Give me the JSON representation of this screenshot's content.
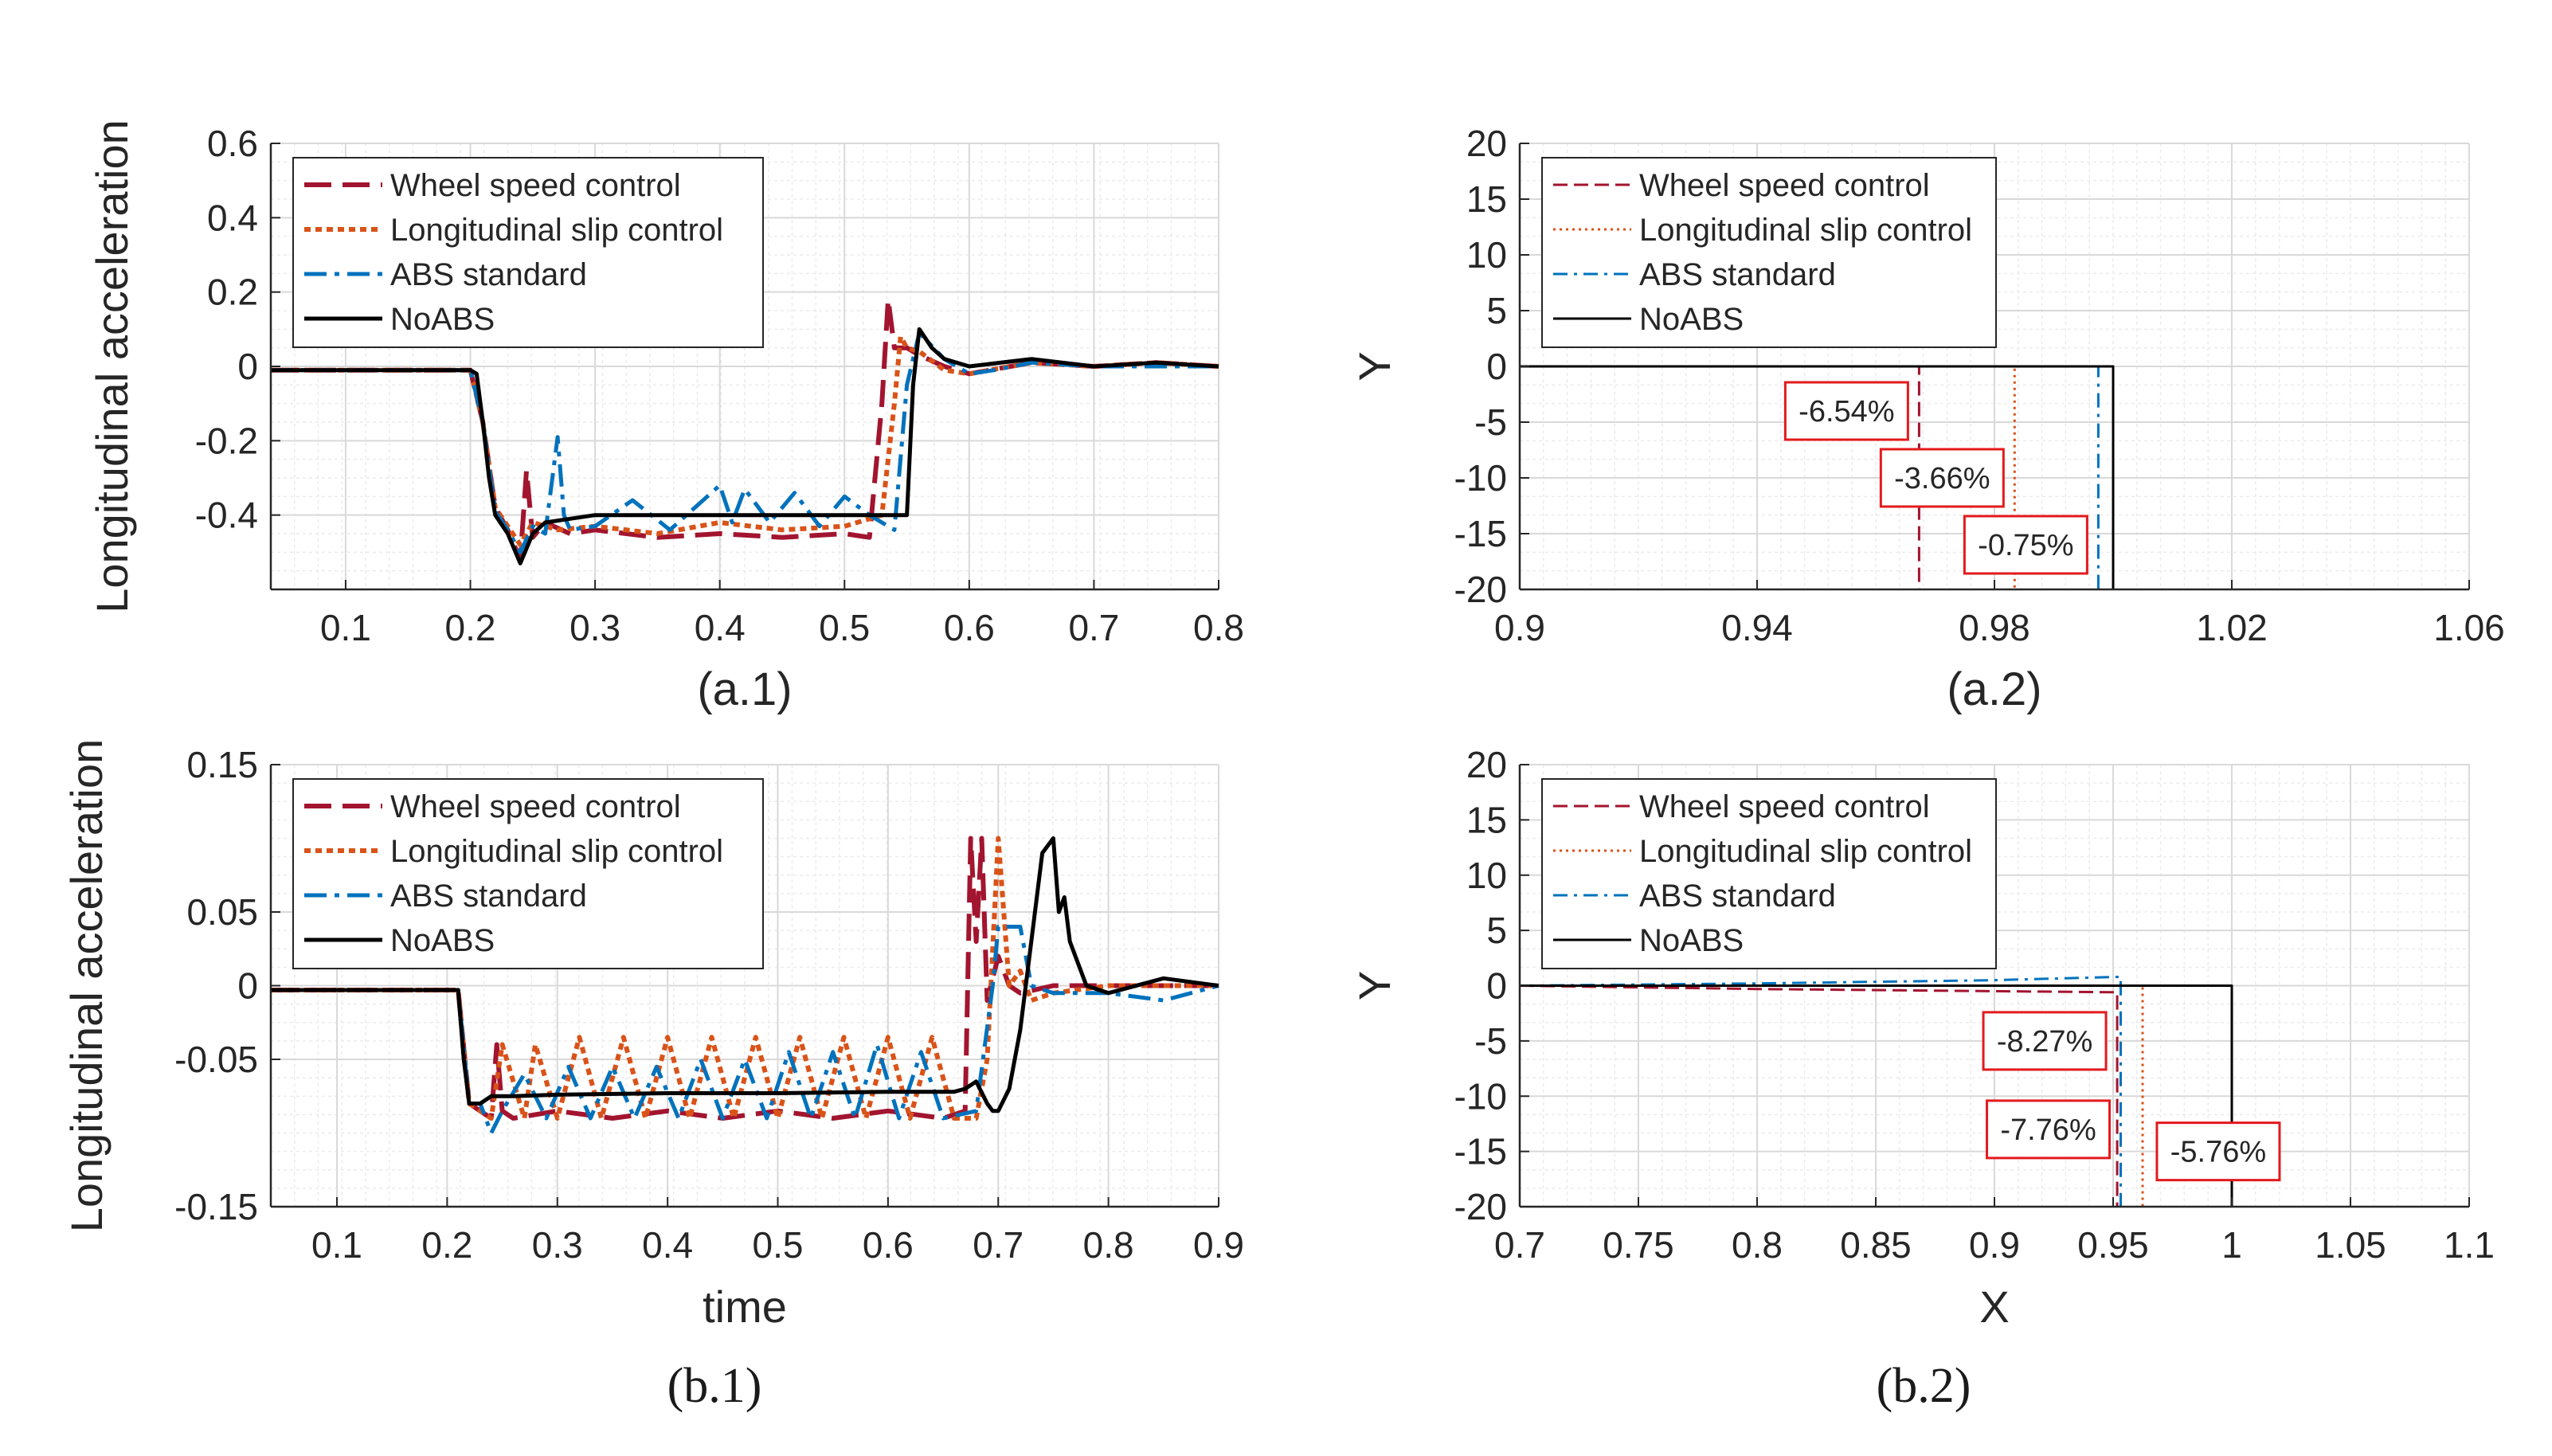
{
  "colors": {
    "wheel": "#a2142f",
    "slip": "#d95319",
    "abs": "#0072bd",
    "noabs": "#000000",
    "ann_border": "#e31a1c"
  },
  "chart_data": [
    {
      "id": "a1",
      "type": "line",
      "caption": "(a.1)",
      "xlabel": "",
      "ylabel": "Longitudinal acceleration",
      "xlim": [
        0.04,
        0.8
      ],
      "ylim": [
        -0.6,
        0.6
      ],
      "xticks": [
        0.1,
        0.2,
        0.3,
        0.4,
        0.5,
        0.6,
        0.7,
        0.8
      ],
      "yticks": [
        0.6,
        0.4,
        0.2,
        0,
        -0.2,
        -0.4
      ],
      "xtick_labels": [
        "0.1",
        "0.2",
        "0.3",
        "0.4",
        "0.5",
        "0.6",
        "0.7",
        "0.8"
      ],
      "ytick_labels": [
        "0.6",
        "0.4",
        "0.2",
        "0",
        "-0.2",
        "-0.4"
      ],
      "grid": true,
      "legend": "top-left",
      "series": [
        {
          "name": "Wheel speed control",
          "style": "wheel",
          "x": [
            0.04,
            0.2,
            0.21,
            0.22,
            0.23,
            0.24,
            0.245,
            0.25,
            0.26,
            0.28,
            0.3,
            0.35,
            0.4,
            0.45,
            0.5,
            0.52,
            0.53,
            0.535,
            0.54,
            0.55,
            0.56,
            0.58,
            0.6,
            0.65,
            0.7,
            0.75,
            0.8
          ],
          "y": [
            -0.01,
            -0.01,
            -0.15,
            -0.38,
            -0.44,
            -0.52,
            -0.28,
            -0.46,
            -0.42,
            -0.45,
            -0.44,
            -0.46,
            -0.45,
            -0.46,
            -0.45,
            -0.46,
            -0.1,
            0.18,
            0.05,
            0.05,
            0.03,
            0.0,
            -0.02,
            0.01,
            0.0,
            0.01,
            0.0
          ]
        },
        {
          "name": "Longitudinal slip control",
          "style": "slip",
          "x": [
            0.04,
            0.2,
            0.21,
            0.22,
            0.23,
            0.24,
            0.25,
            0.27,
            0.3,
            0.35,
            0.4,
            0.45,
            0.5,
            0.53,
            0.54,
            0.545,
            0.55,
            0.56,
            0.58,
            0.6,
            0.65,
            0.7,
            0.75,
            0.8
          ],
          "y": [
            -0.01,
            -0.01,
            -0.15,
            -0.38,
            -0.43,
            -0.48,
            -0.42,
            -0.44,
            -0.43,
            -0.45,
            -0.42,
            -0.44,
            -0.43,
            -0.4,
            -0.1,
            0.08,
            0.05,
            0.04,
            -0.01,
            -0.02,
            0.01,
            0.0,
            0.01,
            0.0
          ]
        },
        {
          "name": "ABS standard",
          "style": "abs",
          "x": [
            0.04,
            0.2,
            0.21,
            0.22,
            0.23,
            0.24,
            0.25,
            0.26,
            0.27,
            0.275,
            0.28,
            0.3,
            0.33,
            0.36,
            0.4,
            0.41,
            0.42,
            0.44,
            0.46,
            0.48,
            0.5,
            0.52,
            0.54,
            0.55,
            0.56,
            0.58,
            0.6,
            0.62,
            0.65,
            0.7,
            0.75,
            0.8
          ],
          "y": [
            -0.01,
            -0.01,
            -0.15,
            -0.39,
            -0.44,
            -0.5,
            -0.43,
            -0.45,
            -0.19,
            -0.4,
            -0.44,
            -0.43,
            -0.36,
            -0.44,
            -0.32,
            -0.42,
            -0.33,
            -0.42,
            -0.34,
            -0.43,
            -0.35,
            -0.4,
            -0.44,
            -0.05,
            0.09,
            0.02,
            -0.02,
            -0.01,
            0.01,
            0.0,
            0.0,
            0.0
          ]
        },
        {
          "name": "NoABS",
          "style": "noabs",
          "x": [
            0.04,
            0.2,
            0.205,
            0.21,
            0.215,
            0.22,
            0.23,
            0.24,
            0.25,
            0.26,
            0.28,
            0.3,
            0.4,
            0.5,
            0.545,
            0.55,
            0.555,
            0.56,
            0.57,
            0.58,
            0.6,
            0.65,
            0.7,
            0.75,
            0.8
          ],
          "y": [
            -0.01,
            -0.01,
            -0.02,
            -0.15,
            -0.3,
            -0.4,
            -0.45,
            -0.53,
            -0.45,
            -0.42,
            -0.41,
            -0.4,
            -0.4,
            -0.4,
            -0.4,
            -0.4,
            -0.05,
            0.1,
            0.05,
            0.02,
            0.0,
            0.02,
            0.0,
            0.01,
            0.0
          ]
        }
      ]
    },
    {
      "id": "a2",
      "type": "line",
      "caption": "(a.2)",
      "xlabel": "",
      "ylabel": "Y",
      "xlim": [
        0.9,
        1.06
      ],
      "ylim": [
        -20,
        20
      ],
      "xticks": [
        0.9,
        0.94,
        0.98,
        1.02,
        1.06
      ],
      "yticks": [
        20,
        15,
        10,
        5,
        0,
        -5,
        -10,
        -15,
        -20
      ],
      "xtick_labels": [
        "0.9",
        "0.94",
        "0.98",
        "1.02",
        "1.06"
      ],
      "ytick_labels": [
        "20",
        "15",
        "10",
        "5",
        "0",
        "-5",
        "-10",
        "-15",
        "-20"
      ],
      "grid": true,
      "legend": "top-left",
      "series": [
        {
          "name": "Wheel speed control",
          "style": "wheel",
          "x": [
            0.9,
            0.9673,
            0.9673,
            0.9673
          ],
          "y": [
            0,
            0,
            0,
            -20
          ]
        },
        {
          "name": "Longitudinal slip control",
          "style": "slip",
          "x": [
            0.9,
            0.9834,
            0.9834
          ],
          "y": [
            0,
            0,
            -20
          ]
        },
        {
          "name": "ABS standard",
          "style": "abs",
          "x": [
            0.9,
            0.9975,
            0.9975
          ],
          "y": [
            0,
            0,
            -20
          ]
        },
        {
          "name": "NoABS",
          "style": "noabs",
          "x": [
            0.9,
            1.0,
            1.0
          ],
          "y": [
            0,
            0,
            -20
          ]
        }
      ],
      "annotations": [
        {
          "text": "-6.54%",
          "x": 0.9673,
          "y": -4
        },
        {
          "text": "-3.66%",
          "x": 0.9834,
          "y": -10
        },
        {
          "text": "-0.75%",
          "x": 0.9975,
          "y": -16
        }
      ]
    },
    {
      "id": "b1",
      "type": "line",
      "caption": "(b.1)",
      "xlabel": "time",
      "ylabel": "Longitudinal acceleration",
      "xlim": [
        0.04,
        0.9
      ],
      "ylim": [
        -0.15,
        0.15
      ],
      "xticks": [
        0.1,
        0.2,
        0.3,
        0.4,
        0.5,
        0.6,
        0.7,
        0.8,
        0.9
      ],
      "yticks": [
        0.15,
        0.05,
        0,
        -0.05,
        -0.15
      ],
      "xtick_labels": [
        "0.1",
        "0.2",
        "0.3",
        "0.4",
        "0.5",
        "0.6",
        "0.7",
        "0.8",
        "0.9"
      ],
      "ytick_labels": [
        "0.15",
        "0.05",
        "0",
        "-0.05",
        "-0.15"
      ],
      "grid": true,
      "legend": "top-left",
      "series": [
        {
          "name": "Wheel speed control",
          "style": "wheel",
          "x": [
            0.04,
            0.21,
            0.22,
            0.23,
            0.24,
            0.245,
            0.25,
            0.26,
            0.3,
            0.35,
            0.4,
            0.45,
            0.5,
            0.55,
            0.6,
            0.65,
            0.67,
            0.675,
            0.68,
            0.685,
            0.69,
            0.7,
            0.71,
            0.72,
            0.75,
            0.8,
            0.85,
            0.9
          ],
          "y": [
            -0.003,
            -0.003,
            -0.08,
            -0.085,
            -0.09,
            -0.04,
            -0.085,
            -0.09,
            -0.085,
            -0.09,
            -0.085,
            -0.09,
            -0.085,
            -0.09,
            -0.085,
            -0.09,
            -0.085,
            0.1,
            0.03,
            0.1,
            -0.01,
            0.02,
            0.0,
            -0.005,
            0.0,
            0.0,
            0.0,
            0.0
          ]
        },
        {
          "name": "Longitudinal slip control",
          "style": "slip",
          "x": [
            0.04,
            0.21,
            0.22,
            0.23,
            0.24,
            0.25,
            0.27,
            0.28,
            0.3,
            0.32,
            0.34,
            0.36,
            0.38,
            0.4,
            0.42,
            0.44,
            0.46,
            0.48,
            0.5,
            0.52,
            0.54,
            0.56,
            0.58,
            0.6,
            0.62,
            0.64,
            0.66,
            0.68,
            0.69,
            0.7,
            0.71,
            0.72,
            0.73,
            0.75,
            0.8,
            0.85,
            0.9
          ],
          "y": [
            -0.003,
            -0.003,
            -0.08,
            -0.085,
            -0.09,
            -0.04,
            -0.09,
            -0.04,
            -0.09,
            -0.035,
            -0.09,
            -0.035,
            -0.09,
            -0.035,
            -0.09,
            -0.035,
            -0.09,
            -0.035,
            -0.09,
            -0.035,
            -0.09,
            -0.035,
            -0.09,
            -0.035,
            -0.09,
            -0.035,
            -0.09,
            -0.09,
            -0.05,
            0.1,
            0.0,
            0.01,
            -0.01,
            -0.005,
            0.0,
            0.0,
            0.0
          ]
        },
        {
          "name": "ABS standard",
          "style": "abs",
          "x": [
            0.04,
            0.21,
            0.22,
            0.23,
            0.24,
            0.25,
            0.27,
            0.29,
            0.31,
            0.33,
            0.35,
            0.37,
            0.39,
            0.41,
            0.43,
            0.45,
            0.47,
            0.49,
            0.51,
            0.53,
            0.55,
            0.57,
            0.59,
            0.61,
            0.63,
            0.65,
            0.68,
            0.695,
            0.7,
            0.72,
            0.73,
            0.75,
            0.8,
            0.85,
            0.9
          ],
          "y": [
            -0.003,
            -0.003,
            -0.08,
            -0.08,
            -0.1,
            -0.085,
            -0.06,
            -0.09,
            -0.055,
            -0.09,
            -0.055,
            -0.09,
            -0.055,
            -0.09,
            -0.05,
            -0.09,
            -0.05,
            -0.09,
            -0.045,
            -0.09,
            -0.045,
            -0.09,
            -0.04,
            -0.09,
            -0.045,
            -0.09,
            -0.085,
            0.0,
            0.04,
            0.04,
            0.0,
            -0.005,
            -0.005,
            -0.01,
            0.0
          ]
        },
        {
          "name": "NoABS",
          "style": "noabs",
          "x": [
            0.04,
            0.21,
            0.215,
            0.22,
            0.23,
            0.24,
            0.26,
            0.3,
            0.4,
            0.5,
            0.6,
            0.66,
            0.67,
            0.68,
            0.69,
            0.695,
            0.7,
            0.71,
            0.72,
            0.73,
            0.74,
            0.75,
            0.755,
            0.76,
            0.765,
            0.77,
            0.78,
            0.8,
            0.85,
            0.9
          ],
          "y": [
            -0.003,
            -0.003,
            -0.05,
            -0.08,
            -0.08,
            -0.075,
            -0.075,
            -0.074,
            -0.073,
            -0.073,
            -0.072,
            -0.072,
            -0.07,
            -0.065,
            -0.08,
            -0.085,
            -0.085,
            -0.07,
            -0.03,
            0.03,
            0.09,
            0.1,
            0.05,
            0.06,
            0.03,
            0.02,
            0.0,
            -0.005,
            0.005,
            0.0
          ]
        }
      ]
    },
    {
      "id": "b2",
      "type": "line",
      "caption": "(b.2)",
      "xlabel": "X",
      "ylabel": "Y",
      "xlim": [
        0.7,
        1.1
      ],
      "ylim": [
        -20,
        20
      ],
      "xticks": [
        0.7,
        0.75,
        0.8,
        0.85,
        0.9,
        0.95,
        1,
        1.05,
        1.1
      ],
      "yticks": [
        20,
        15,
        10,
        5,
        0,
        -5,
        -10,
        -15,
        -20
      ],
      "xtick_labels": [
        "0.7",
        "0.75",
        "0.8",
        "0.85",
        "0.9",
        "0.95",
        "1",
        "1.05",
        "1.1"
      ],
      "ytick_labels": [
        "20",
        "15",
        "10",
        "5",
        "0",
        "-5",
        "-10",
        "-15",
        "-20"
      ],
      "grid": true,
      "legend": "top-left",
      "series": [
        {
          "name": "Wheel speed control",
          "style": "wheel",
          "x": [
            0.7,
            0.8,
            0.9,
            0.9517,
            0.9517
          ],
          "y": [
            0,
            -0.3,
            -0.5,
            -0.6,
            -20
          ]
        },
        {
          "name": "Longitudinal slip control",
          "style": "slip",
          "x": [
            0.7,
            0.9,
            0.9624,
            0.9624
          ],
          "y": [
            0,
            0,
            0,
            -20
          ]
        },
        {
          "name": "ABS standard",
          "style": "abs",
          "x": [
            0.7,
            0.8,
            0.9,
            0.9532,
            0.9532
          ],
          "y": [
            0,
            0.2,
            0.5,
            0.8,
            -20
          ]
        },
        {
          "name": "NoABS",
          "style": "noabs",
          "x": [
            0.7,
            1.0,
            1.0
          ],
          "y": [
            0,
            0,
            -20
          ]
        }
      ],
      "annotations": [
        {
          "text": "-8.27%",
          "x": 0.9517,
          "y": -5
        },
        {
          "text": "-7.76%",
          "x": 0.9532,
          "y": -13
        },
        {
          "text": "-5.76%",
          "x": 0.9624,
          "y": -15
        }
      ]
    }
  ]
}
